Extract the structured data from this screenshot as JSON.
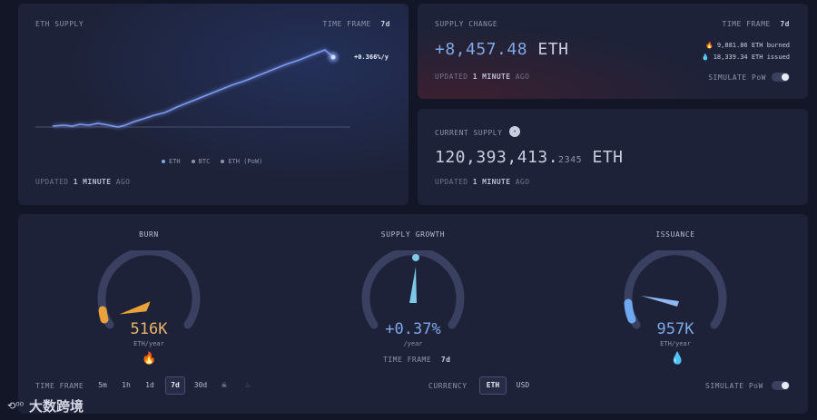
{
  "eth_supply": {
    "title": "ETH SUPPLY",
    "timeframe_label": "TIME FRAME",
    "timeframe_value": "7d",
    "rate": "+0.366%/y",
    "legend": [
      "ETH",
      "BTC",
      "ETH (PoW)"
    ],
    "updated_prefix": "UPDATED",
    "updated_value": "1 MINUTE",
    "updated_suffix": "AGO"
  },
  "supply_change": {
    "title": "SUPPLY CHANGE",
    "timeframe_label": "TIME FRAME",
    "timeframe_value": "7d",
    "value": "+8,457.48",
    "unit": "ETH",
    "burned": "9,881.86 ETH burned",
    "issued": "18,339.34 ETH issued",
    "simulate_label": "SIMULATE PoW",
    "updated_prefix": "UPDATED",
    "updated_value": "1 MINUTE",
    "updated_suffix": "AGO"
  },
  "current_supply": {
    "title": "CURRENT SUPPLY",
    "value": "120,393,413.",
    "decimals": "2345",
    "unit": "ETH",
    "updated_prefix": "UPDATED",
    "updated_value": "1 MINUTE",
    "updated_suffix": "AGO"
  },
  "gauges": {
    "burn": {
      "title": "BURN",
      "value": "516K",
      "unit": "ETH/year",
      "level": 0.08
    },
    "growth": {
      "title": "SUPPLY GROWTH",
      "value": "+0.37%",
      "unit": "/year",
      "timeframe_label": "TIME FRAME",
      "timeframe_value": "7d"
    },
    "issuance": {
      "title": "ISSUANCE",
      "value": "957K",
      "unit": "ETH/year",
      "level": 0.12
    },
    "timeframe_label": "TIME FRAME",
    "timeframes": [
      "5m",
      "1h",
      "1d",
      "7d",
      "30d"
    ],
    "timeframe_selected": "7d",
    "currency_label": "CURRENCY",
    "currencies": [
      "ETH",
      "USD"
    ],
    "currency_selected": "ETH",
    "simulate_label": "SIMULATE PoW"
  },
  "watermark": "大数跨境",
  "colors": {
    "burn": "#e9a23b",
    "growth": "#7ec8e8",
    "issuance": "#6fa8f0",
    "chart_line": "#6f8fe8"
  }
}
